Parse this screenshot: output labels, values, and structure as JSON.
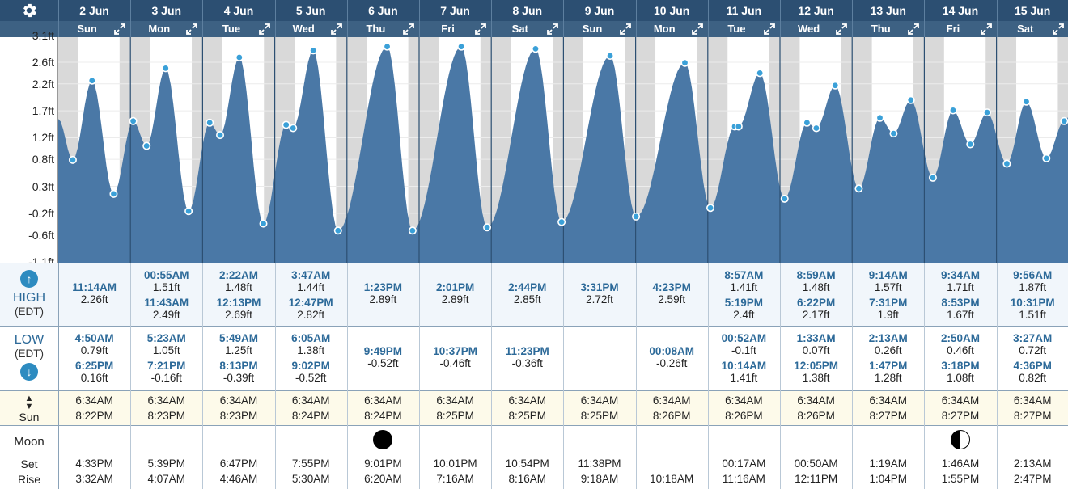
{
  "header": {
    "dates": [
      "2 Jun",
      "3 Jun",
      "4 Jun",
      "5 Jun",
      "6 Jun",
      "7 Jun",
      "8 Jun",
      "9 Jun",
      "10 Jun",
      "11 Jun",
      "12 Jun",
      "13 Jun",
      "14 Jun",
      "15 Jun"
    ],
    "days": [
      "Sun",
      "Mon",
      "Tue",
      "Wed",
      "Thu",
      "Fri",
      "Sat",
      "Sun",
      "Mon",
      "Tue",
      "Wed",
      "Thu",
      "Fri",
      "Sat"
    ]
  },
  "chart_data": {
    "type": "area",
    "title": "",
    "xlabel": "",
    "ylabel": "",
    "y_unit": "ft",
    "ylim": [
      -1.1,
      3.0
    ],
    "y_ticks": [
      "3.1ft",
      "2.6ft",
      "2.2ft",
      "1.7ft",
      "1.2ft",
      "0.8ft",
      "0.3ft",
      "-0.2ft",
      "-0.6ft",
      "-1.1ft"
    ],
    "y_tick_values": [
      3.1,
      2.6,
      2.2,
      1.7,
      1.2,
      0.8,
      0.3,
      -0.2,
      -0.6,
      -1.1
    ],
    "x_start": "2 Jun 00:00",
    "series": [
      {
        "points": [
          {
            "t": "2 Jun 00:00",
            "h": 1.55
          },
          {
            "t": "2 Jun 04:50",
            "h": 0.79
          },
          {
            "t": "2 Jun 11:14",
            "h": 2.26
          },
          {
            "t": "2 Jun 18:25",
            "h": 0.16
          },
          {
            "t": "3 Jun 00:55",
            "h": 1.51
          },
          {
            "t": "3 Jun 05:23",
            "h": 1.05
          },
          {
            "t": "3 Jun 11:43",
            "h": 2.49
          },
          {
            "t": "3 Jun 19:21",
            "h": -0.16
          },
          {
            "t": "4 Jun 02:22",
            "h": 1.48
          },
          {
            "t": "4 Jun 05:49",
            "h": 1.25
          },
          {
            "t": "4 Jun 12:13",
            "h": 2.69
          },
          {
            "t": "4 Jun 20:13",
            "h": -0.39
          },
          {
            "t": "5 Jun 03:47",
            "h": 1.44
          },
          {
            "t": "5 Jun 06:05",
            "h": 1.38
          },
          {
            "t": "5 Jun 12:47",
            "h": 2.82
          },
          {
            "t": "5 Jun 21:02",
            "h": -0.52
          },
          {
            "t": "6 Jun 13:23",
            "h": 2.89
          },
          {
            "t": "6 Jun 21:49",
            "h": -0.52
          },
          {
            "t": "7 Jun 14:01",
            "h": 2.89
          },
          {
            "t": "7 Jun 22:37",
            "h": -0.46
          },
          {
            "t": "8 Jun 14:44",
            "h": 2.85
          },
          {
            "t": "8 Jun 23:23",
            "h": -0.36
          },
          {
            "t": "9 Jun 15:31",
            "h": 2.72
          },
          {
            "t": "10 Jun 00:08",
            "h": -0.26
          },
          {
            "t": "10 Jun 16:23",
            "h": 2.59
          },
          {
            "t": "11 Jun 00:52",
            "h": -0.1
          },
          {
            "t": "11 Jun 08:57",
            "h": 1.41
          },
          {
            "t": "11 Jun 10:14",
            "h": 1.41
          },
          {
            "t": "11 Jun 17:19",
            "h": 2.4
          },
          {
            "t": "12 Jun 01:33",
            "h": 0.07
          },
          {
            "t": "12 Jun 08:59",
            "h": 1.48
          },
          {
            "t": "12 Jun 12:05",
            "h": 1.38
          },
          {
            "t": "12 Jun 18:22",
            "h": 2.17
          },
          {
            "t": "13 Jun 02:13",
            "h": 0.26
          },
          {
            "t": "13 Jun 09:14",
            "h": 1.57
          },
          {
            "t": "13 Jun 13:47",
            "h": 1.28
          },
          {
            "t": "13 Jun 19:31",
            "h": 1.9
          },
          {
            "t": "14 Jun 02:50",
            "h": 0.46
          },
          {
            "t": "14 Jun 09:34",
            "h": 1.71
          },
          {
            "t": "14 Jun 15:18",
            "h": 1.08
          },
          {
            "t": "14 Jun 20:53",
            "h": 1.67
          },
          {
            "t": "15 Jun 03:27",
            "h": 0.72
          },
          {
            "t": "15 Jun 09:56",
            "h": 1.87
          },
          {
            "t": "15 Jun 16:36",
            "h": 0.82
          },
          {
            "t": "15 Jun 22:31",
            "h": 1.51
          }
        ]
      }
    ],
    "night_shading": true,
    "fill_color": "#4a78a6",
    "grid": true
  },
  "labels": {
    "high": "HIGH",
    "low": "LOW",
    "tz": "(EDT)",
    "sun": "Sun",
    "moon": "Moon",
    "set": "Set",
    "rise": "Rise"
  },
  "high": [
    [
      {
        "time": "11:14AM",
        "height": "2.26ft"
      }
    ],
    [
      {
        "time": "00:55AM",
        "height": "1.51ft"
      },
      {
        "time": "11:43AM",
        "height": "2.49ft"
      }
    ],
    [
      {
        "time": "2:22AM",
        "height": "1.48ft"
      },
      {
        "time": "12:13PM",
        "height": "2.69ft"
      }
    ],
    [
      {
        "time": "3:47AM",
        "height": "1.44ft"
      },
      {
        "time": "12:47PM",
        "height": "2.82ft"
      }
    ],
    [
      {
        "time": "1:23PM",
        "height": "2.89ft"
      }
    ],
    [
      {
        "time": "2:01PM",
        "height": "2.89ft"
      }
    ],
    [
      {
        "time": "2:44PM",
        "height": "2.85ft"
      }
    ],
    [
      {
        "time": "3:31PM",
        "height": "2.72ft"
      }
    ],
    [
      {
        "time": "4:23PM",
        "height": "2.59ft"
      }
    ],
    [
      {
        "time": "8:57AM",
        "height": "1.41ft"
      },
      {
        "time": "5:19PM",
        "height": "2.4ft"
      }
    ],
    [
      {
        "time": "8:59AM",
        "height": "1.48ft"
      },
      {
        "time": "6:22PM",
        "height": "2.17ft"
      }
    ],
    [
      {
        "time": "9:14AM",
        "height": "1.57ft"
      },
      {
        "time": "7:31PM",
        "height": "1.9ft"
      }
    ],
    [
      {
        "time": "9:34AM",
        "height": "1.71ft"
      },
      {
        "time": "8:53PM",
        "height": "1.67ft"
      }
    ],
    [
      {
        "time": "9:56AM",
        "height": "1.87ft"
      },
      {
        "time": "10:31PM",
        "height": "1.51ft"
      }
    ]
  ],
  "low": [
    [
      {
        "time": "4:50AM",
        "height": "0.79ft"
      },
      {
        "time": "6:25PM",
        "height": "0.16ft"
      }
    ],
    [
      {
        "time": "5:23AM",
        "height": "1.05ft"
      },
      {
        "time": "7:21PM",
        "height": "-0.16ft"
      }
    ],
    [
      {
        "time": "5:49AM",
        "height": "1.25ft"
      },
      {
        "time": "8:13PM",
        "height": "-0.39ft"
      }
    ],
    [
      {
        "time": "6:05AM",
        "height": "1.38ft"
      },
      {
        "time": "9:02PM",
        "height": "-0.52ft"
      }
    ],
    [
      {
        "time": "9:49PM",
        "height": "-0.52ft"
      }
    ],
    [
      {
        "time": "10:37PM",
        "height": "-0.46ft"
      }
    ],
    [
      {
        "time": "11:23PM",
        "height": "-0.36ft"
      }
    ],
    [],
    [
      {
        "time": "00:08AM",
        "height": "-0.26ft"
      }
    ],
    [
      {
        "time": "00:52AM",
        "height": "-0.1ft"
      },
      {
        "time": "10:14AM",
        "height": "1.41ft"
      }
    ],
    [
      {
        "time": "1:33AM",
        "height": "0.07ft"
      },
      {
        "time": "12:05PM",
        "height": "1.38ft"
      }
    ],
    [
      {
        "time": "2:13AM",
        "height": "0.26ft"
      },
      {
        "time": "1:47PM",
        "height": "1.28ft"
      }
    ],
    [
      {
        "time": "2:50AM",
        "height": "0.46ft"
      },
      {
        "time": "3:18PM",
        "height": "1.08ft"
      }
    ],
    [
      {
        "time": "3:27AM",
        "height": "0.72ft"
      },
      {
        "time": "4:36PM",
        "height": "0.82ft"
      }
    ]
  ],
  "sun": [
    {
      "rise": "6:34AM",
      "set": "8:22PM"
    },
    {
      "rise": "6:34AM",
      "set": "8:23PM"
    },
    {
      "rise": "6:34AM",
      "set": "8:23PM"
    },
    {
      "rise": "6:34AM",
      "set": "8:24PM"
    },
    {
      "rise": "6:34AM",
      "set": "8:24PM"
    },
    {
      "rise": "6:34AM",
      "set": "8:25PM"
    },
    {
      "rise": "6:34AM",
      "set": "8:25PM"
    },
    {
      "rise": "6:34AM",
      "set": "8:25PM"
    },
    {
      "rise": "6:34AM",
      "set": "8:26PM"
    },
    {
      "rise": "6:34AM",
      "set": "8:26PM"
    },
    {
      "rise": "6:34AM",
      "set": "8:26PM"
    },
    {
      "rise": "6:34AM",
      "set": "8:27PM"
    },
    {
      "rise": "6:34AM",
      "set": "8:27PM"
    },
    {
      "rise": "6:34AM",
      "set": "8:27PM"
    }
  ],
  "moon": [
    {
      "phase": "",
      "set": "4:33PM",
      "rise": "3:32AM"
    },
    {
      "phase": "",
      "set": "5:39PM",
      "rise": "4:07AM"
    },
    {
      "phase": "",
      "set": "6:47PM",
      "rise": "4:46AM"
    },
    {
      "phase": "",
      "set": "7:55PM",
      "rise": "5:30AM"
    },
    {
      "phase": "new-moon",
      "set": "9:01PM",
      "rise": "6:20AM"
    },
    {
      "phase": "",
      "set": "10:01PM",
      "rise": "7:16AM"
    },
    {
      "phase": "",
      "set": "10:54PM",
      "rise": "8:16AM"
    },
    {
      "phase": "",
      "set": "11:38PM",
      "rise": "9:18AM"
    },
    {
      "phase": "",
      "set": "",
      "rise": "10:18AM"
    },
    {
      "phase": "",
      "set": "00:17AM",
      "rise": "11:16AM"
    },
    {
      "phase": "",
      "set": "00:50AM",
      "rise": "12:11PM"
    },
    {
      "phase": "",
      "set": "1:19AM",
      "rise": "1:04PM"
    },
    {
      "phase": "first-quarter",
      "set": "1:46AM",
      "rise": "1:55PM"
    },
    {
      "phase": "",
      "set": "2:13AM",
      "rise": "2:47PM"
    }
  ],
  "icons": {
    "gear": "gear-icon",
    "expand": "expand-icon",
    "high_arrow": "arrow-up-icon",
    "low_arrow": "arrow-down-icon",
    "sun_updown": "sun-updown-icon"
  },
  "colors": {
    "header_dark": "#2c4f72",
    "header_light": "#3d6183",
    "tide_fill": "#4a78a6",
    "night": "#d9d9d9",
    "time_blue": "#2d6a99",
    "sun_row_bg": "#fdfaea",
    "high_row_bg": "#f1f6fb"
  }
}
